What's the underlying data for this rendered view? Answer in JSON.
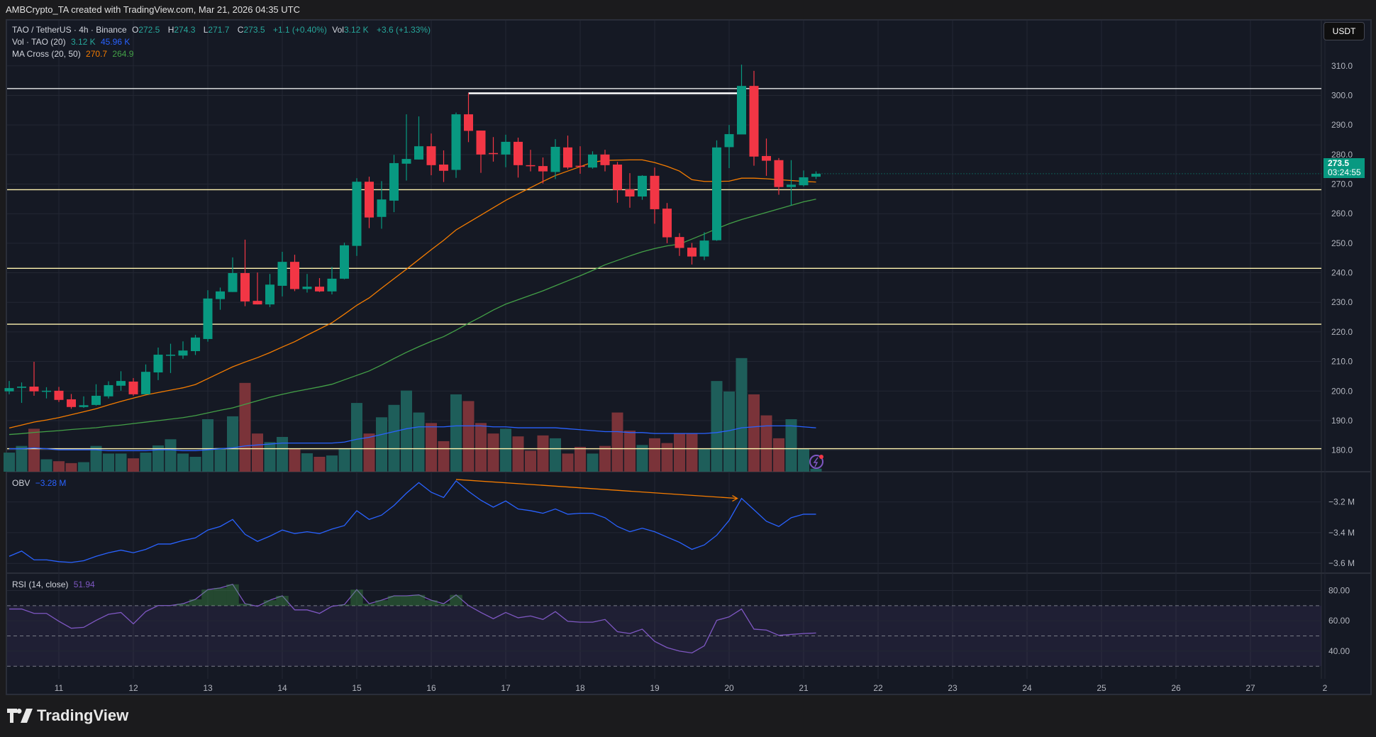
{
  "caption": "AMBCrypto_TA created with TradingView.com, Mar 21, 2026 04:35 UTC",
  "legend": {
    "symbol": "TAO / TetherUS · 4h · Binance",
    "o_label": "O",
    "o": "272.5",
    "h_label": "H",
    "h": "274.3",
    "l_label": "L",
    "l": "271.7",
    "c_label": "C",
    "c": "273.5",
    "change": "+1.1 (+0.40%)",
    "vol_label": "Vol",
    "vol": "3.12 K",
    "vol_change": "+3.6 (+1.33%)",
    "vol_ind": "Vol · TAO (20)",
    "vol_ind_v1": "3.12 K",
    "vol_ind_v2": "45.96 K",
    "ma_cross": "MA Cross (20, 50)",
    "ma20": "270.7",
    "ma50": "264.9",
    "obv": "OBV",
    "obv_value": "−3.28 M",
    "rsi": "RSI (14, close)",
    "rsi_value": "51.94"
  },
  "currency_button": "USDT",
  "price_tag": {
    "price": "273.5",
    "countdown": "03:24:55"
  },
  "brand": "TradingView",
  "colors": {
    "up": "#089981",
    "down": "#f23645",
    "ma20": "#f57c00",
    "ma50": "#43a047",
    "vol_ma": "#2962ff",
    "obv": "#2962ff",
    "rsi": "#7e57c2",
    "levels": "#fff3b0"
  },
  "chart_data": {
    "type": "candlestick",
    "symbol": "TAO / TetherUS",
    "interval": "4h",
    "x_ticks": [
      "11",
      "12",
      "13",
      "14",
      "15",
      "16",
      "17",
      "18",
      "19",
      "20",
      "21",
      "22",
      "23",
      "24",
      "25",
      "26",
      "27",
      "2"
    ],
    "price_ticks": [
      "180.0",
      "190.0",
      "200.0",
      "210.0",
      "220.0",
      "230.0",
      "240.0",
      "250.0",
      "260.0",
      "270.0",
      "280.0",
      "290.0",
      "300.0",
      "310.0"
    ],
    "ylim": [
      172,
      318
    ],
    "candles_ohlcv": [
      [
        199.9,
        203.4,
        198.9,
        201.0,
        20
      ],
      [
        201.1,
        202.9,
        196.0,
        201.5,
        27
      ],
      [
        201.5,
        209.9,
        198.4,
        199.9,
        45
      ],
      [
        200.0,
        201.3,
        197.5,
        200.1,
        13
      ],
      [
        200.1,
        201.4,
        196.3,
        197.0,
        11
      ],
      [
        197.2,
        199.0,
        194.0,
        194.6,
        9
      ],
      [
        194.6,
        198.2,
        194.3,
        195.2,
        10
      ],
      [
        195.3,
        202.3,
        195.1,
        198.4,
        27
      ],
      [
        198.2,
        203.3,
        197.5,
        202.0,
        19
      ],
      [
        201.8,
        206.7,
        200.1,
        203.4,
        19
      ],
      [
        203.2,
        204.4,
        198.4,
        198.9,
        14
      ],
      [
        198.9,
        209.0,
        198.9,
        206.5,
        20
      ],
      [
        206.3,
        214.7,
        203.7,
        212.3,
        27.5
      ],
      [
        212.2,
        216.0,
        206.1,
        212.3,
        34
      ],
      [
        212.0,
        216.8,
        210.9,
        213.7,
        19
      ],
      [
        213.5,
        219.0,
        212.2,
        218.1,
        15.6
      ],
      [
        217.6,
        234.1,
        216.7,
        231.3,
        55
      ],
      [
        231.1,
        235.0,
        227.5,
        233.7,
        25
      ],
      [
        233.5,
        245.2,
        233.5,
        239.9,
        58
      ],
      [
        239.9,
        251.2,
        228.7,
        230.3,
        93
      ],
      [
        230.5,
        240.1,
        229.3,
        229.3,
        40
      ],
      [
        229.3,
        239.6,
        228.4,
        236.0,
        31
      ],
      [
        235.6,
        247.1,
        232.0,
        243.7,
        36.4
      ],
      [
        243.7,
        246.1,
        233.8,
        234.5,
        24.5
      ],
      [
        234.5,
        239.6,
        233.3,
        235.3,
        19.3
      ],
      [
        235.3,
        238.2,
        233.5,
        233.7,
        15.6
      ],
      [
        233.7,
        242.0,
        232.7,
        238.0,
        17
      ],
      [
        238.0,
        250.2,
        237.8,
        249.3,
        23.8
      ],
      [
        249.1,
        272.0,
        245.7,
        270.8,
        72
      ],
      [
        270.8,
        272.5,
        255.1,
        258.7,
        40
      ],
      [
        258.9,
        271.0,
        254.9,
        264.8,
        57
      ],
      [
        264.4,
        279.9,
        260.5,
        277.1,
        70
      ],
      [
        276.9,
        293.6,
        271.2,
        278.5,
        85
      ],
      [
        278.3,
        292.9,
        278.3,
        282.8,
        62
      ],
      [
        282.8,
        287.1,
        273.0,
        276.4,
        51
      ],
      [
        276.6,
        281.4,
        270.7,
        274.5,
        32
      ],
      [
        274.8,
        294.2,
        272.1,
        293.6,
        81
      ],
      [
        293.6,
        300.8,
        284.2,
        288.0,
        74
      ],
      [
        288.1,
        288.1,
        273.8,
        280.0,
        51
      ],
      [
        280.5,
        285.9,
        277.6,
        280.4,
        40
      ],
      [
        280.0,
        286.7,
        275.7,
        284.3,
        45
      ],
      [
        284.3,
        285.7,
        272.2,
        276.4,
        37
      ],
      [
        276.4,
        281.6,
        274.3,
        276.1,
        22
      ],
      [
        276.1,
        279.0,
        270.2,
        274.3,
        38
      ],
      [
        274.1,
        285.2,
        271.7,
        282.6,
        35
      ],
      [
        282.4,
        286.4,
        275.0,
        275.6,
        19
      ],
      [
        276.2,
        282.8,
        273.5,
        276.0,
        26
      ],
      [
        275.6,
        281.1,
        275.2,
        280.0,
        19
      ],
      [
        280.0,
        281.6,
        274.3,
        276.4,
        27
      ],
      [
        276.6,
        277.5,
        263.7,
        268.0,
        62
      ],
      [
        268.2,
        273.7,
        262.0,
        265.8,
        43
      ],
      [
        265.8,
        273.0,
        264.7,
        272.8,
        28
      ],
      [
        272.8,
        275.6,
        256.6,
        261.5,
        35
      ],
      [
        261.7,
        263.6,
        250.0,
        252.0,
        30
      ],
      [
        252.1,
        253.4,
        245.7,
        248.4,
        40
      ],
      [
        248.5,
        250.1,
        242.8,
        245.5,
        40
      ],
      [
        245.5,
        253.7,
        244.3,
        250.9,
        24
      ],
      [
        251.0,
        284.8,
        250.8,
        282.4,
        95
      ],
      [
        282.5,
        290.0,
        275.4,
        286.9,
        84
      ],
      [
        286.8,
        310.4,
        286.8,
        303.2,
        119
      ],
      [
        303.2,
        308.3,
        276.2,
        279.3,
        81
      ],
      [
        279.5,
        285.4,
        272.8,
        277.9,
        59
      ],
      [
        278.1,
        278.8,
        266.4,
        269.0,
        35
      ],
      [
        269.0,
        278.1,
        262.7,
        269.8,
        55
      ],
      [
        269.6,
        274.6,
        269.2,
        272.3,
        24
      ],
      [
        272.5,
        274.3,
        271.7,
        273.5,
        3.12
      ]
    ],
    "ma20": [
      187.5,
      188.5,
      189.5,
      190.2,
      191.0,
      192.0,
      193.0,
      194.0,
      195.3,
      196.5,
      197.6,
      198.7,
      199.5,
      200.3,
      201.1,
      202.2,
      204.2,
      206.2,
      208.2,
      209.8,
      211.3,
      213.0,
      214.9,
      216.7,
      218.9,
      221.0,
      223.1,
      226.0,
      229.0,
      231.5,
      234.8,
      238.0,
      241.2,
      244.5,
      247.8,
      251.0,
      254.5,
      257.0,
      259.5,
      262.0,
      264.5,
      266.7,
      268.8,
      270.9,
      272.9,
      274.4,
      275.9,
      277.4,
      278.0,
      278.1,
      278.2,
      278.2,
      277.3,
      276.0,
      274.4,
      271.5,
      270.9,
      270.9,
      271.0,
      272.0,
      272.0,
      271.8,
      271.5,
      271.2,
      270.9,
      270.7
    ],
    "ma50": [
      185.3,
      185.6,
      186.0,
      186.3,
      186.6,
      187.0,
      187.3,
      187.6,
      188.1,
      188.5,
      189.0,
      189.5,
      190.0,
      190.5,
      191.0,
      191.7,
      192.6,
      193.5,
      194.3,
      195.5,
      196.7,
      197.9,
      198.9,
      199.8,
      200.6,
      201.4,
      202.3,
      203.8,
      205.3,
      206.8,
      208.8,
      211.0,
      213.1,
      215.0,
      216.8,
      218.4,
      220.6,
      222.9,
      225.1,
      227.4,
      229.4,
      230.9,
      232.4,
      233.9,
      235.6,
      237.3,
      239.0,
      240.8,
      242.7,
      244.2,
      245.7,
      247.1,
      248.2,
      249.1,
      249.7,
      251.4,
      253.1,
      254.9,
      256.6,
      258.0,
      259.2,
      260.4,
      261.6,
      262.8,
      264.0,
      264.9
    ],
    "vol_ma_k": [
      24,
      24,
      25,
      24,
      23,
      23,
      23,
      23,
      22,
      22,
      22,
      22,
      23,
      23,
      22,
      22,
      23,
      24,
      25,
      27,
      28,
      29,
      30,
      30,
      30,
      30,
      30,
      31,
      34,
      36,
      39,
      42,
      45,
      47,
      47,
      47,
      48,
      48,
      48,
      47,
      47,
      46,
      46,
      46,
      46,
      45,
      44,
      43,
      42,
      42,
      41,
      41,
      40,
      40,
      40,
      40,
      40,
      41,
      43,
      46,
      47,
      48,
      48,
      48,
      47,
      45.96
    ],
    "horizontal_levels": [
      302.3,
      268.1,
      241.5,
      222.6,
      180.5
    ],
    "level_segment": {
      "from_candle": 38,
      "to_candle": 60,
      "price": 300.7
    },
    "obv": {
      "ticks": [
        "−3.2 M",
        "−3.4 M",
        "−3.6 M"
      ],
      "values_m": [
        -3.554,
        -3.52,
        -3.577,
        -3.577,
        -3.589,
        -3.594,
        -3.583,
        -3.554,
        -3.531,
        -3.514,
        -3.531,
        -3.509,
        -3.474,
        -3.474,
        -3.451,
        -3.434,
        -3.383,
        -3.36,
        -3.314,
        -3.411,
        -3.457,
        -3.423,
        -3.383,
        -3.406,
        -3.394,
        -3.406,
        -3.377,
        -3.354,
        -3.257,
        -3.314,
        -3.286,
        -3.223,
        -3.143,
        -3.074,
        -3.137,
        -3.171,
        -3.063,
        -3.131,
        -3.189,
        -3.234,
        -3.194,
        -3.246,
        -3.257,
        -3.274,
        -3.246,
        -3.28,
        -3.274,
        -3.274,
        -3.303,
        -3.36,
        -3.394,
        -3.371,
        -3.394,
        -3.429,
        -3.463,
        -3.509,
        -3.48,
        -3.417,
        -3.32,
        -3.177,
        -3.251,
        -3.326,
        -3.36,
        -3.303,
        -3.28,
        -3.28
      ],
      "divergence": {
        "from_candle": 37,
        "to_candle": 60
      }
    },
    "rsi": {
      "ticks": [
        "80.00",
        "60.00",
        "40.00"
      ],
      "bands": [
        70,
        50,
        30
      ],
      "values": [
        67.8,
        67.8,
        64.9,
        64.9,
        59.7,
        55.1,
        55.7,
        60.3,
        64.3,
        65.5,
        58.0,
        66.1,
        70.1,
        70.1,
        71.3,
        74.2,
        80.6,
        81.7,
        84.1,
        71.3,
        69.6,
        73.6,
        76.5,
        67.2,
        67.2,
        64.9,
        69.6,
        70.7,
        80.6,
        71.3,
        73.6,
        76.5,
        76.5,
        77.1,
        73.6,
        71.3,
        77.1,
        70.1,
        65.5,
        61.4,
        65.5,
        62.0,
        63.2,
        60.9,
        66.1,
        59.7,
        59.1,
        59.1,
        60.9,
        52.8,
        51.6,
        54.5,
        46.4,
        42.3,
        40.0,
        38.8,
        43.5,
        60.3,
        62.6,
        67.8,
        54.5,
        53.9,
        50.4,
        51.0,
        51.6,
        51.94
      ]
    }
  }
}
